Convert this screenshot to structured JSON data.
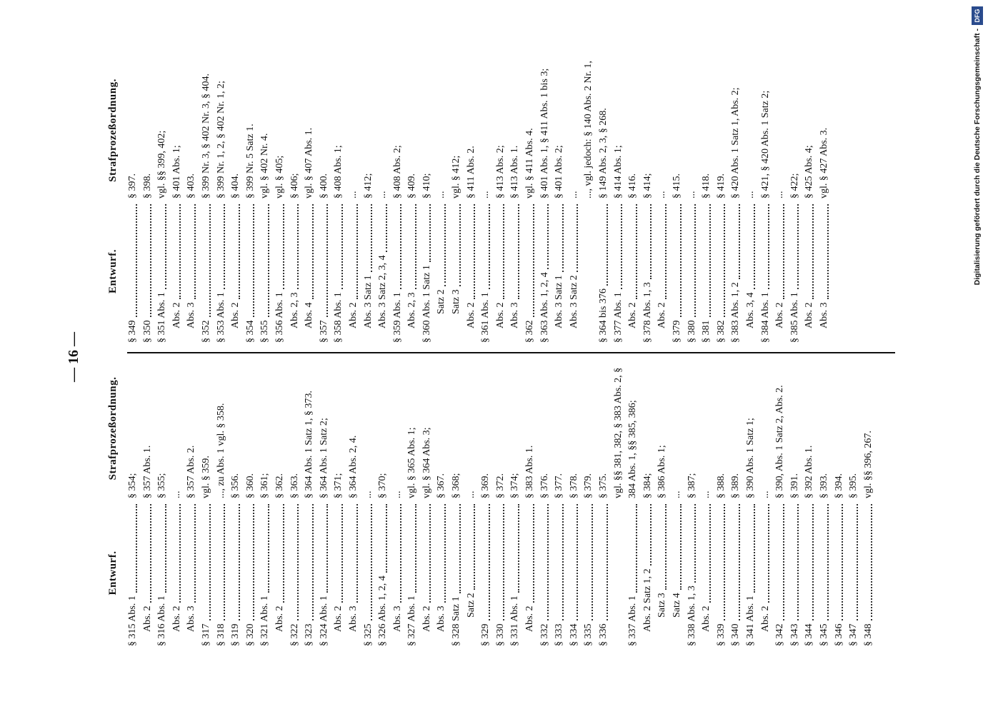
{
  "page_number": "— 16 —",
  "left_table": {
    "headers": [
      "Entwurf.",
      "Strafprozeßordnung."
    ],
    "rows": [
      [
        "§ 315 Abs. 1",
        "§ 354;"
      ],
      [
        "Abs. 2",
        "§ 357 Abs. 1."
      ],
      [
        "§ 316 Abs. 1",
        "§ 355;"
      ],
      [
        "Abs. 2",
        "..."
      ],
      [
        "Abs. 3",
        "§ 357 Abs. 2."
      ],
      [
        "§ 317",
        "vgl. § 359."
      ],
      [
        "§ 318",
        "..., zu Abs. 1 vgl. § 358."
      ],
      [
        "§ 319",
        "§ 356."
      ],
      [
        "§ 320",
        "§ 360."
      ],
      [
        "§ 321 Abs. 1",
        "§ 361;"
      ],
      [
        "Abs. 2",
        "§ 362."
      ],
      [
        "§ 322",
        "§ 363."
      ],
      [
        "§ 323",
        "§ 364 Abs. 1 Satz 1, § 373."
      ],
      [
        "§ 324 Abs. 1",
        "§ 364 Abs. 1 Satz 2;"
      ],
      [
        "Abs. 2",
        "§ 371;"
      ],
      [
        "Abs. 3",
        "§ 364 Abs. 2, 4."
      ],
      [
        "§ 325",
        "..."
      ],
      [
        "§ 326 Abs. 1, 2, 4",
        "§ 370;"
      ],
      [
        "Abs. 3",
        "..."
      ],
      [
        "§ 327 Abs. 1",
        "vgl. § 365 Abs. 1;"
      ],
      [
        "Abs. 2",
        "vgl. § 364 Abs. 3;"
      ],
      [
        "Abs. 3",
        "§ 367."
      ],
      [
        "§ 328 Satz 1",
        "§ 368;"
      ],
      [
        "Satz 2",
        "..."
      ],
      [
        "§ 329",
        "§ 369."
      ],
      [
        "§ 330",
        "§ 372."
      ],
      [
        "§ 331 Abs. 1",
        "§ 374;"
      ],
      [
        "Abs. 2",
        "§ 383 Abs. 1."
      ],
      [
        "§ 332",
        "§ 376."
      ],
      [
        "§ 333",
        "§ 377."
      ],
      [
        "§ 334",
        "§ 378."
      ],
      [
        "§ 335",
        "§ 379."
      ],
      [
        "§ 336",
        "§ 375."
      ],
      [
        "§ 337 Abs. 1",
        "vgl. §§ 381, 382, § 383 Abs. 2, § 384 Abs. 1, §§ 385, 386;"
      ],
      [
        "Abs. 2 Satz 1, 2",
        "§ 384;"
      ],
      [
        "Satz 3",
        "§ 386 Abs. 1;"
      ],
      [
        "Satz 4",
        "..."
      ],
      [
        "§ 338 Abs. 1, 3",
        "§ 387;"
      ],
      [
        "Abs. 2",
        "..."
      ],
      [
        "§ 339",
        "§ 388."
      ],
      [
        "§ 340",
        "§ 389."
      ],
      [
        "§ 341 Abs. 1",
        "§ 390 Abs. 1 Satz 1;"
      ],
      [
        "Abs. 2",
        "..."
      ],
      [
        "§ 342",
        "§ 390, Abs. 1 Satz 2, Abs. 2."
      ],
      [
        "§ 343",
        "§ 391."
      ],
      [
        "§ 344",
        "§ 392 Abs. 1."
      ],
      [
        "§ 345",
        "§ 393."
      ],
      [
        "§ 346",
        "§ 394."
      ],
      [
        "§ 347",
        "§ 395."
      ],
      [
        "§ 348",
        "vgl. §§ 396, 267."
      ]
    ]
  },
  "right_table": {
    "headers": [
      "Entwurf.",
      "Strafprozeßordnung."
    ],
    "rows": [
      [
        "§ 349",
        "§ 397."
      ],
      [
        "§ 350",
        "§ 398."
      ],
      [
        "§ 351 Abs. 1",
        "vgl. §§ 399, 402;"
      ],
      [
        "Abs. 2",
        "§ 401 Abs. 1;"
      ],
      [
        "Abs. 3",
        "§ 403."
      ],
      [
        "§ 352",
        "§ 399 Nr. 3, § 402 Nr. 3, § 404."
      ],
      [
        "§ 353 Abs. 1",
        "§ 399 Nr. 1, 2, § 402 Nr. 1, 2;"
      ],
      [
        "Abs. 2",
        "§ 404."
      ],
      [
        "§ 354",
        "§ 399 Nr. 5 Satz 1."
      ],
      [
        "§ 355",
        "vgl. § 402 Nr. 4."
      ],
      [
        "§ 356 Abs. 1",
        "vgl. § 405;"
      ],
      [
        "Abs. 2, 3",
        "§ 406;"
      ],
      [
        "Abs. 4",
        "vgl. § 407 Abs. 1."
      ],
      [
        "§ 357",
        "§ 400."
      ],
      [
        "§ 358 Abs. 1",
        "§ 408 Abs. 1;"
      ],
      [
        "Abs. 2",
        "..."
      ],
      [
        "Abs. 3 Satz 1",
        "§ 412;"
      ],
      [
        "Abs. 3 Satz 2, 3, 4",
        "..."
      ],
      [
        "§ 359 Abs. 1",
        "§ 408 Abs. 2;"
      ],
      [
        "Abs. 2, 3",
        "§ 409."
      ],
      [
        "§ 360 Abs. 1 Satz 1",
        "§ 410;"
      ],
      [
        "Satz 2",
        "..."
      ],
      [
        "Satz 3",
        "vgl. § 412;"
      ],
      [
        "Abs. 2",
        "§ 411 Abs. 2."
      ],
      [
        "§ 361 Abs. 1",
        "..."
      ],
      [
        "Abs. 2",
        "§ 413 Abs. 2;"
      ],
      [
        "Abs. 3",
        "§ 413 Abs. 1."
      ],
      [
        "§ 362",
        "vgl. § 411 Abs. 4."
      ],
      [
        "§ 363 Abs. 1, 2, 4",
        "§ 401 Abs. 1, § 411 Abs. 1 bis 3;"
      ],
      [
        "Abs. 3 Satz 1",
        "§ 401 Abs. 2;"
      ],
      [
        "Abs. 3 Satz 2",
        "..."
      ],
      [
        "§ 364 bis 376",
        "..., vgl. jedoch: § 140 Abs. 2 Nr. 1, § 149 Abs. 2, 3, § 268."
      ],
      [
        "§ 377 Abs. 1",
        "§ 414 Abs. 1;"
      ],
      [
        "Abs. 2",
        "§ 416."
      ],
      [
        "§ 378 Abs. 1, 3",
        "§ 414;"
      ],
      [
        "Abs. 2",
        "..."
      ],
      [
        "§ 379",
        "§ 415."
      ],
      [
        "§ 380",
        "..."
      ],
      [
        "§ 381",
        "§ 418."
      ],
      [
        "§ 382",
        "§ 419."
      ],
      [
        "§ 383 Abs. 1, 2",
        "§ 420 Abs. 1 Satz 1, Abs. 2;"
      ],
      [
        "Abs. 3, 4",
        "..."
      ],
      [
        "§ 384 Abs. 1",
        "§ 421, § 420 Abs. 1 Satz 2;"
      ],
      [
        "Abs. 2",
        "..."
      ],
      [
        "§ 385 Abs. 1",
        "§ 422;"
      ],
      [
        "Abs. 2",
        "§ 425 Abs. 4;"
      ],
      [
        "Abs. 3",
        "vgl. § 427 Abs. 3."
      ]
    ]
  },
  "footer": {
    "credit": "Digitalisierung gefördert durch die Deutsche Forschungsgemeinschaft -",
    "logo": "DFG"
  }
}
